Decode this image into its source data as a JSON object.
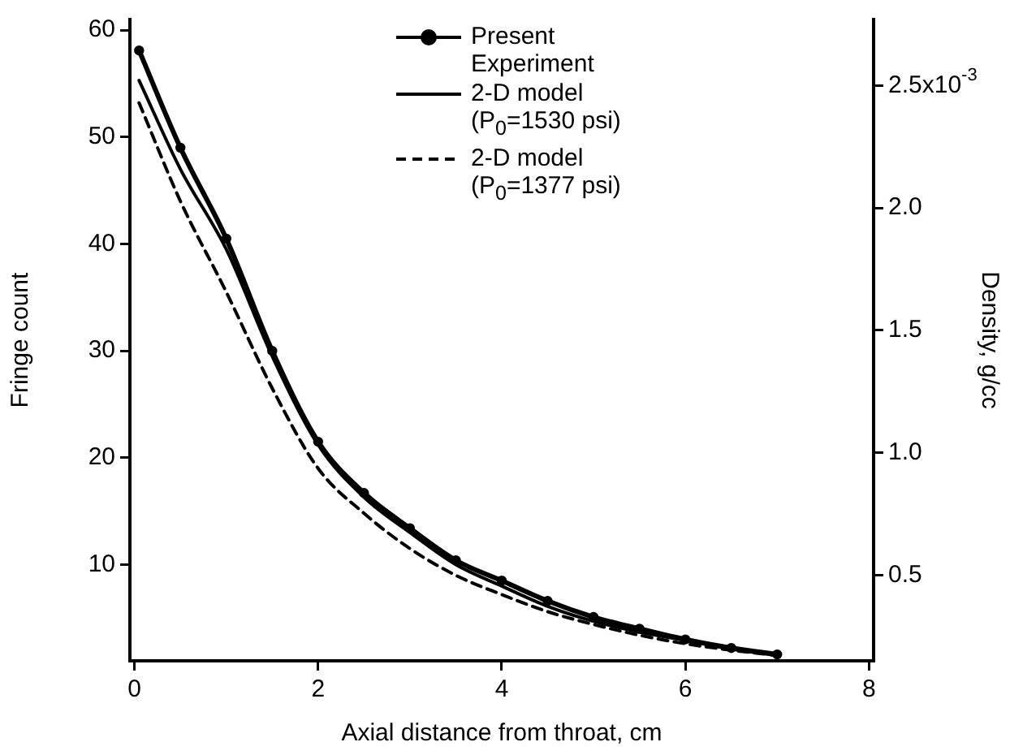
{
  "chart_data": {
    "type": "line",
    "xlabel": "Axial distance from throat, cm",
    "ylabel": "Fringe count",
    "y2label": "Density, g/cc",
    "x": [
      0.05,
      0.5,
      1,
      1.5,
      2,
      2.5,
      3,
      3.5,
      4,
      4.5,
      5,
      5.5,
      6,
      6.5,
      7
    ],
    "series": [
      {
        "name": "Present Experiment",
        "color": "#000000",
        "marker": "circle",
        "line_style": "solid",
        "values": [
          58.1,
          49,
          40.5,
          30,
          21.5,
          16.7,
          13.4,
          10.4,
          8.5,
          6.6,
          5.1,
          4.0,
          3.0,
          2.2,
          1.6
        ]
      },
      {
        "name": "2-D model (P$_{0}$=1530  psi)",
        "color": "#000000",
        "marker": "none",
        "line_style": "solid",
        "values": [
          55.3,
          47,
          39.5,
          29.5,
          21.2,
          16.3,
          13,
          10,
          8.0,
          6.1,
          4.7,
          3.7,
          2.9,
          2.1,
          1.5
        ]
      },
      {
        "name": "2-D model (P$_{0}$=1377  psi)",
        "color": "#000000",
        "marker": "none",
        "line_style": "dashed",
        "values": [
          53.2,
          44,
          35.5,
          26.5,
          19,
          14.8,
          11.5,
          9,
          7.2,
          5.6,
          4.4,
          3.4,
          2.6,
          2.0,
          1.5
        ]
      }
    ],
    "xlim": [
      -0.05,
      8.05
    ],
    "xticks": [
      0,
      2,
      4,
      6,
      8
    ],
    "ylim": [
      1,
      61
    ],
    "yticks": [
      10,
      20,
      30,
      40,
      50,
      60
    ],
    "y2lim": [
      0.15,
      2.77
    ],
    "y2ticks": [
      0.5,
      {
        "value": 1,
        "label": "1.0"
      },
      1.5,
      {
        "value": 2,
        "label": "2.0"
      },
      2.5
    ],
    "annotations": [
      "x10$^{-3}$"
    ],
    "grid": false,
    "legend": "top"
  }
}
